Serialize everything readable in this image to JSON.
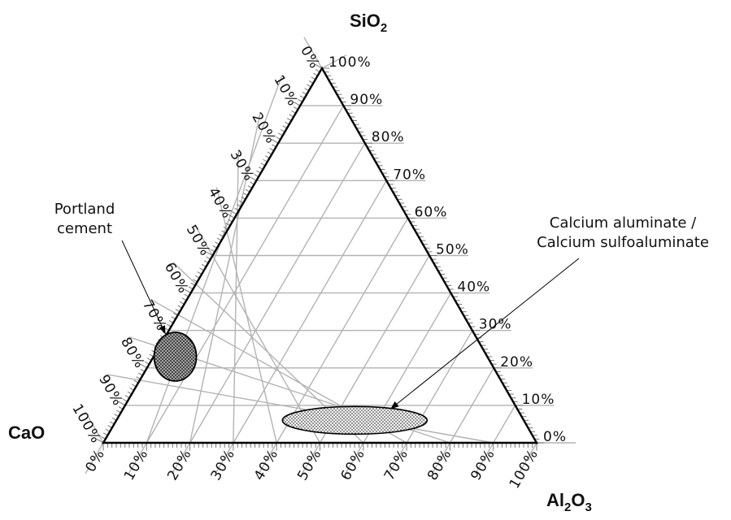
{
  "diagram": {
    "type": "ternary",
    "vertices": {
      "top": {
        "label": "SiO",
        "sub": "2"
      },
      "left": {
        "label": "CaO",
        "sub": ""
      },
      "right": {
        "label": "Al",
        "sub": "2",
        "label2": "O",
        "sub2": "3"
      }
    },
    "axes": {
      "bottom_ticks": [
        "0%",
        "10%",
        "20%",
        "30%",
        "40%",
        "50%",
        "60%",
        "70%",
        "80%",
        "90%",
        "100%"
      ],
      "right_ticks": [
        "0%",
        "10%",
        "20%",
        "30%",
        "40%",
        "50%",
        "60%",
        "70%",
        "80%",
        "90%",
        "100%"
      ],
      "left_ticks": [
        "0%",
        "10%",
        "20%",
        "30%",
        "40%",
        "50%",
        "60%",
        "70%",
        "80%",
        "90%",
        "100%"
      ]
    },
    "regions": [
      {
        "name": "portland-cement",
        "label_lines": [
          "Portland",
          "cement"
        ],
        "pattern": "dense-crosshatch",
        "sio2": 23,
        "al2o3": 5,
        "cao": 72
      },
      {
        "name": "calcium-aluminate",
        "label_lines": [
          "Calcium aluminate /",
          "Calcium sulfoaluminate"
        ],
        "pattern": "dots",
        "sio2": 6,
        "al2o3": 55,
        "cao": 39
      }
    ],
    "colors": {
      "grid": "#b3b3b3",
      "frame": "#000000"
    }
  }
}
